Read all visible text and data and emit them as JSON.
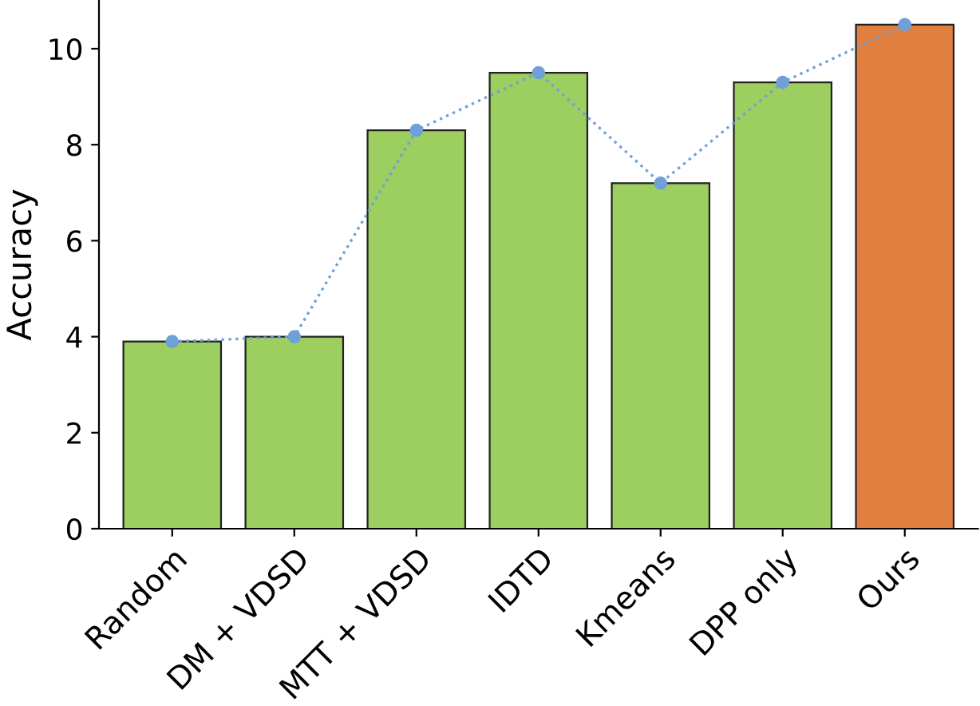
{
  "chart_data": {
    "type": "bar",
    "ylabel": "Accuracy",
    "categories": [
      "Random",
      "DM + VDSD",
      "MTT + VDSD",
      "IDTD",
      "Kmeans",
      "DPP only",
      "Ours"
    ],
    "series": [
      {
        "values": [
          3.9,
          4.0,
          8.3,
          9.5,
          7.2,
          9.3,
          10.5
        ],
        "colors": [
          "#9ccf5f",
          "#9ccf5f",
          "#9ccf5f",
          "#9ccf5f",
          "#9ccf5f",
          "#9ccf5f",
          "#e07f3f"
        ]
      },
      {
        "type": "line",
        "color": "#6fa0d8",
        "values": [
          3.9,
          4.0,
          8.3,
          9.5,
          7.2,
          9.3,
          10.5
        ]
      }
    ],
    "marker": "circle",
    "line_style": "dotted",
    "ylim": [
      0,
      11
    ],
    "yticks": [
      0,
      2,
      4,
      6,
      8,
      10
    ],
    "grid": false,
    "legend": false
  }
}
